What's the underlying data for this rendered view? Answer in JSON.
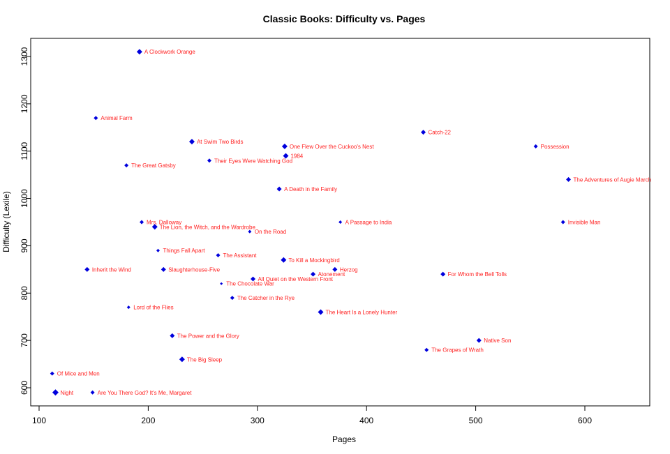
{
  "chart_data": {
    "type": "scatter",
    "title": "Classic Books: Difficulty vs. Pages",
    "xlabel": "Pages",
    "ylabel": "Difficulty (Lexile)",
    "xlim": [
      94,
      660
    ],
    "ylim": [
      562,
      1338
    ],
    "x_ticks": [
      100,
      200,
      300,
      400,
      500,
      600
    ],
    "y_ticks": [
      600,
      700,
      800,
      900,
      1000,
      1100,
      1200,
      1300
    ],
    "grid": false,
    "legend": null,
    "marker_color": "#0000dd",
    "label_color": "#ff2020",
    "points": [
      {
        "label": "A Clockwork Orange",
        "x": 192,
        "y": 1310,
        "size": 4
      },
      {
        "label": "Animal Farm",
        "x": 152,
        "y": 1170,
        "size": 3
      },
      {
        "label": "At Swim Two Birds",
        "x": 240,
        "y": 1120,
        "size": 4
      },
      {
        "label": "The Great Gatsby",
        "x": 180,
        "y": 1070,
        "size": 3
      },
      {
        "label": "Their Eyes Were Watching God",
        "x": 256,
        "y": 1080,
        "size": 3
      },
      {
        "label": "One Flew Over the Cuckoo's Nest",
        "x": 325,
        "y": 1110,
        "size": 4
      },
      {
        "label": "1984",
        "x": 326,
        "y": 1090,
        "size": 4
      },
      {
        "label": "A Death in the Family",
        "x": 320,
        "y": 1020,
        "size": 3.5
      },
      {
        "label": "Catch-22",
        "x": 452,
        "y": 1140,
        "size": 3.5
      },
      {
        "label": "Possession",
        "x": 555,
        "y": 1110,
        "size": 3
      },
      {
        "label": "The Adventures of Augie March",
        "x": 585,
        "y": 1040,
        "size": 3.5
      },
      {
        "label": "Invisible Man",
        "x": 580,
        "y": 950,
        "size": 3
      },
      {
        "label": "Mrs. Dalloway",
        "x": 194,
        "y": 950,
        "size": 3
      },
      {
        "label": "The Lion, the Witch, and the Wardrobe",
        "x": 206,
        "y": 940,
        "size": 4
      },
      {
        "label": "On the Road",
        "x": 293,
        "y": 930,
        "size": 2.5
      },
      {
        "label": "A Passage to India",
        "x": 376,
        "y": 950,
        "size": 2.5
      },
      {
        "label": "Things Fall Apart",
        "x": 209,
        "y": 890,
        "size": 2.5
      },
      {
        "label": "The Assistant",
        "x": 264,
        "y": 880,
        "size": 3
      },
      {
        "label": "To Kill a Mockingbird",
        "x": 324,
        "y": 870,
        "size": 4
      },
      {
        "label": "Inherit the Wind",
        "x": 144,
        "y": 850,
        "size": 3.5
      },
      {
        "label": "Slaughterhouse-Five",
        "x": 214,
        "y": 850,
        "size": 3.5
      },
      {
        "label": "Herzog",
        "x": 371,
        "y": 850,
        "size": 3.5
      },
      {
        "label": "Atonement",
        "x": 351,
        "y": 840,
        "size": 3.5
      },
      {
        "label": "For Whom the Bell Tolls",
        "x": 470,
        "y": 840,
        "size": 3.5
      },
      {
        "label": "All Quiet on the Western Front",
        "x": 296,
        "y": 830,
        "size": 3.5
      },
      {
        "label": "The Chocolate War",
        "x": 267,
        "y": 820,
        "size": 2
      },
      {
        "label": "The Catcher in the Rye",
        "x": 277,
        "y": 790,
        "size": 3
      },
      {
        "label": "The Heart Is a Lonely Hunter",
        "x": 358,
        "y": 760,
        "size": 4
      },
      {
        "label": "Lord of the Flies",
        "x": 182,
        "y": 770,
        "size": 2.5
      },
      {
        "label": "The Power and the Glory",
        "x": 222,
        "y": 710,
        "size": 3.5
      },
      {
        "label": "Native Son",
        "x": 503,
        "y": 700,
        "size": 3.5
      },
      {
        "label": "The Big Sleep",
        "x": 231,
        "y": 660,
        "size": 4
      },
      {
        "label": "The Grapes of Wrath",
        "x": 455,
        "y": 680,
        "size": 3
      },
      {
        "label": "Of Mice and Men",
        "x": 112,
        "y": 630,
        "size": 3
      },
      {
        "label": "Night",
        "x": 115,
        "y": 590,
        "size": 4.5
      },
      {
        "label": "Are You There God? It's Me, Margaret",
        "x": 149,
        "y": 590,
        "size": 3
      }
    ]
  }
}
